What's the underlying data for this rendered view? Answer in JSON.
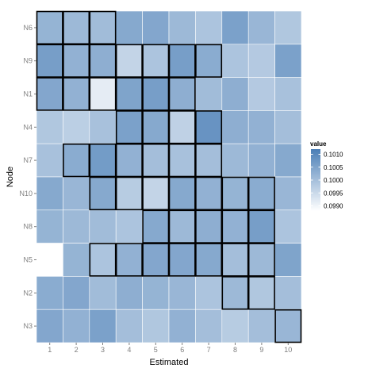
{
  "chart_data": {
    "type": "heatmap",
    "x_label": "Estimated",
    "y_label": "Node",
    "x_categories": [
      "1",
      "2",
      "3",
      "4",
      "5",
      "6",
      "7",
      "8",
      "9",
      "10"
    ],
    "y_categories": [
      "N6",
      "N9",
      "N1",
      "N4",
      "N7",
      "N10",
      "N8",
      "N5",
      "N2",
      "N3"
    ],
    "values": [
      [
        0.1002,
        0.1001,
        0.10005,
        0.1004,
        0.10045,
        0.1001,
        0.0999,
        0.10055,
        0.10015,
        0.09985
      ],
      [
        0.1006,
        0.10025,
        0.1003,
        0.0996,
        0.0999,
        0.1006,
        0.10035,
        0.0999,
        0.0998,
        0.10055
      ],
      [
        0.10045,
        0.10025,
        0.09915,
        0.1005,
        0.1006,
        0.1003,
        0.10005,
        0.1003,
        0.0998,
        0.09995
      ],
      [
        0.09985,
        0.0997,
        0.09995,
        0.10055,
        0.1004,
        0.09965,
        0.1008,
        0.1003,
        0.10025,
        0.1
      ],
      [
        0.09995,
        0.10035,
        0.10065,
        0.10025,
        0.1,
        0.09995,
        0.1,
        0.1001,
        0.10025,
        0.1004
      ],
      [
        0.1004,
        0.10015,
        0.1004,
        0.09975,
        0.0996,
        0.1004,
        0.10025,
        0.1002,
        0.10035,
        0.10015
      ],
      [
        0.1002,
        0.1001,
        0.10005,
        0.0999,
        0.1004,
        0.1001,
        0.1003,
        0.10025,
        0.1006,
        0.0999
      ],
      [
        0.0986,
        0.1002,
        0.0999,
        0.10025,
        0.10045,
        0.10045,
        0.1004,
        0.1,
        0.1001,
        0.1005
      ],
      [
        0.10035,
        0.10045,
        0.10005,
        0.1003,
        0.1002,
        0.10015,
        0.0999,
        0.1001,
        0.09985,
        0.1
      ],
      [
        0.10045,
        0.10025,
        0.10055,
        0.1,
        0.09985,
        0.10025,
        0.1,
        0.09975,
        0.1,
        0.10015
      ]
    ],
    "highlighted_cells": [
      [
        0,
        0
      ],
      [
        0,
        1
      ],
      [
        0,
        2
      ],
      [
        1,
        0
      ],
      [
        1,
        1
      ],
      [
        1,
        2
      ],
      [
        1,
        3
      ],
      [
        1,
        4
      ],
      [
        1,
        5
      ],
      [
        1,
        6
      ],
      [
        2,
        0
      ],
      [
        2,
        1
      ],
      [
        2,
        2
      ],
      [
        2,
        3
      ],
      [
        2,
        4
      ],
      [
        2,
        5
      ],
      [
        3,
        3
      ],
      [
        3,
        4
      ],
      [
        3,
        5
      ],
      [
        3,
        6
      ],
      [
        4,
        1
      ],
      [
        4,
        2
      ],
      [
        4,
        3
      ],
      [
        4,
        4
      ],
      [
        4,
        5
      ],
      [
        4,
        6
      ],
      [
        5,
        2
      ],
      [
        5,
        3
      ],
      [
        5,
        4
      ],
      [
        5,
        5
      ],
      [
        5,
        6
      ],
      [
        5,
        7
      ],
      [
        5,
        8
      ],
      [
        6,
        4
      ],
      [
        6,
        5
      ],
      [
        6,
        6
      ],
      [
        6,
        7
      ],
      [
        6,
        8
      ],
      [
        7,
        2
      ],
      [
        7,
        3
      ],
      [
        7,
        4
      ],
      [
        7,
        5
      ],
      [
        7,
        6
      ],
      [
        7,
        7
      ],
      [
        7,
        8
      ],
      [
        8,
        7
      ],
      [
        8,
        8
      ],
      [
        9,
        9
      ]
    ],
    "color_low": "#ffffff",
    "color_high": "#4a7eb6",
    "value_range": [
      0.0988,
      0.1012
    ],
    "legend": {
      "title": "value",
      "position": "right",
      "breaks": [
        0.101,
        0.1005,
        0.1,
        0.0995,
        0.099
      ],
      "labels": [
        "0.1010",
        "0.1005",
        "0.1000",
        "0.0995",
        "0.0990"
      ]
    },
    "panel_background": "#ebebeb",
    "grid": true
  }
}
